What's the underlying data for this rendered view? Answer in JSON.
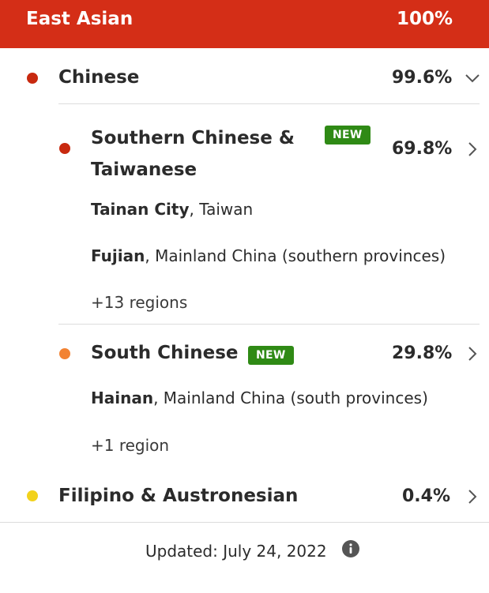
{
  "header": {
    "title": "East Asian",
    "percent": "100%",
    "color": "#d42e17"
  },
  "chinese": {
    "label": "Chinese",
    "percent": "99.6%",
    "dot_color": "#c8290f",
    "chevron_icon": "chevron-down-icon"
  },
  "southern": {
    "label_line1": "Southern Chinese &",
    "label_line2": "Taiwanese",
    "badge": "NEW",
    "percent": "69.8%",
    "dot_color": "#c8290f",
    "chevron_icon": "chevron-right-icon",
    "regions": [
      {
        "place": "Tainan City",
        "area": ", Taiwan"
      },
      {
        "place": "Fujian",
        "area": ", Mainland China (southern provinces)"
      }
    ],
    "more": "+13 regions"
  },
  "south": {
    "label": "South Chinese",
    "badge": "NEW",
    "percent": "29.8%",
    "dot_color": "#f28232",
    "chevron_icon": "chevron-right-icon",
    "regions": [
      {
        "place": "Hainan",
        "area": ", Mainland China (south provinces)"
      }
    ],
    "more": "+1 region"
  },
  "filipino": {
    "label": "Filipino & Austronesian",
    "percent": "0.4%",
    "dot_color": "#f2d21c",
    "chevron_icon": "chevron-right-icon"
  },
  "footer": {
    "updated": "Updated: July 24, 2022",
    "icon": "info-icon"
  },
  "badge_color": "#2f8a15"
}
